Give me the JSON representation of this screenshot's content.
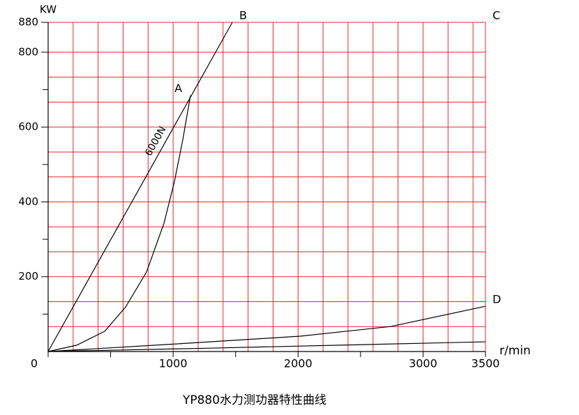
{
  "chart_data": {
    "type": "line",
    "title": "YP880水力测功器特性曲线",
    "y_label": "KW",
    "x_label": "r/min",
    "xlim": [
      0,
      3500
    ],
    "ylim": [
      0,
      880
    ],
    "xticks": [
      0,
      1000,
      2000,
      3000,
      3500
    ],
    "yticks": [
      200,
      400,
      600,
      800,
      880
    ],
    "x_minor_ticks": [
      500,
      1500,
      2500
    ],
    "y_minor_ticks": [
      100,
      300,
      500,
      700
    ],
    "grid": true,
    "grid_color": "#e8262b",
    "xgrid": [
      0,
      200,
      400,
      600,
      800,
      1000,
      1200,
      1400,
      1600,
      1800,
      2000,
      2200,
      2400,
      2600,
      2800,
      3000,
      3200,
      3400,
      3500
    ],
    "ygrid": [
      66.7,
      133.3,
      200,
      266.7,
      333.3,
      400,
      466.7,
      533.3,
      600,
      666.7,
      733.3,
      800,
      880
    ],
    "series": [
      {
        "name": "6000N",
        "color": "#000000",
        "x": [
          0,
          1474
        ],
        "values": [
          0,
          880
        ]
      },
      {
        "color": "#000000",
        "x": [
          0,
          229,
          452,
          620,
          788,
          927,
          1011,
          1078,
          1139
        ],
        "values": [
          0,
          17,
          54,
          119,
          213,
          343,
          455,
          567,
          685
        ]
      },
      {
        "color": "#000000",
        "x": [
          0,
          1011,
          2017,
          2743,
          3500
        ],
        "values": [
          0,
          20,
          41,
          67,
          121
        ]
      },
      {
        "color": "#000000",
        "x": [
          0,
          1290,
          3500
        ],
        "values": [
          0,
          9,
          26
        ]
      }
    ],
    "annotations": [
      {
        "text": "A",
        "x": 1139,
        "y": 685,
        "anchor": "left"
      },
      {
        "text": "B",
        "x": 1474,
        "y": 880,
        "anchor": "right"
      },
      {
        "text": "C",
        "x": 3500,
        "y": 880,
        "anchor": "right"
      },
      {
        "text": "D",
        "x": 3500,
        "y": 121,
        "anchor": "right"
      }
    ]
  }
}
